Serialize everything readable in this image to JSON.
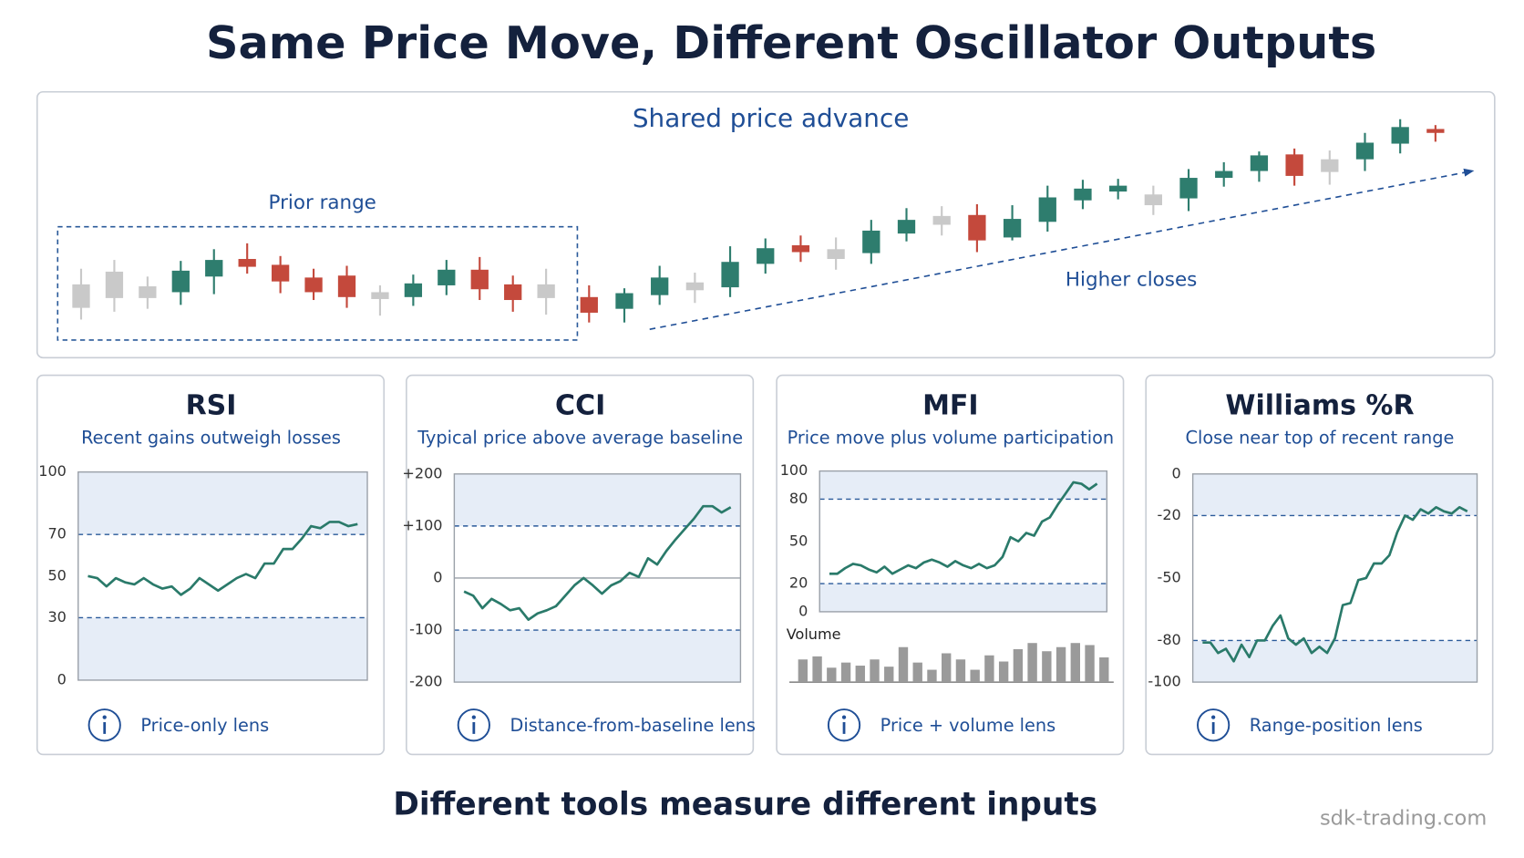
{
  "title": "Same Price Move, Different Oscillator Outputs",
  "footer": "Different tools measure different inputs",
  "watermark": "sdk-trading.com",
  "chart_data": [
    {
      "type": "candlestick",
      "title": "Shared price advance",
      "annotations": [
        "Prior range",
        "Higher closes"
      ],
      "open": [
        59,
        72,
        57,
        51,
        67,
        85,
        79,
        66,
        68,
        51,
        46,
        58,
        74,
        59,
        59,
        46,
        34,
        48,
        61,
        56,
        80,
        99,
        95,
        91,
        111,
        129,
        130,
        107,
        123,
        145,
        154,
        151,
        147,
        168,
        175,
        192,
        187,
        187,
        203,
        218
      ],
      "high": [
        75,
        84,
        67,
        83,
        95,
        101,
        88,
        75,
        78,
        58,
        69,
        84,
        87,
        68,
        75,
        58,
        55,
        78,
        71,
        98,
        106,
        109,
        107,
        125,
        137,
        139,
        141,
        140,
        160,
        166,
        167,
        160,
        177,
        184,
        195,
        198,
        196,
        214,
        228,
        222
      ],
      "low": [
        23,
        31,
        34,
        38,
        49,
        70,
        50,
        43,
        35,
        27,
        37,
        48,
        43,
        31,
        28,
        20,
        20,
        38,
        40,
        46,
        70,
        82,
        74,
        80,
        103,
        109,
        92,
        104,
        113,
        136,
        146,
        130,
        134,
        159,
        164,
        160,
        161,
        175,
        193,
        205
      ],
      "close": [
        35,
        45,
        45,
        73,
        84,
        77,
        62,
        51,
        46,
        44,
        60,
        74,
        54,
        43,
        45,
        30,
        50,
        66,
        53,
        82,
        96,
        92,
        85,
        114,
        125,
        120,
        104,
        126,
        148,
        157,
        160,
        140,
        168,
        175,
        191,
        170,
        174,
        204,
        220,
        214
      ],
      "colors": [
        "#c9c9c9",
        "#c9c9c9",
        "#c9c9c9",
        "#2e7d6e",
        "#2e7d6e",
        "#c4493c",
        "#c4493c",
        "#c4493c",
        "#c4493c",
        "#c9c9c9",
        "#2e7d6e",
        "#2e7d6e",
        "#c4493c",
        "#c4493c",
        "#c9c9c9",
        "#c4493c",
        "#2e7d6e",
        "#2e7d6e",
        "#c9c9c9",
        "#2e7d6e",
        "#2e7d6e",
        "#c4493c",
        "#c9c9c9",
        "#2e7d6e",
        "#2e7d6e",
        "#c9c9c9",
        "#c4493c",
        "#2e7d6e",
        "#2e7d6e",
        "#2e7d6e",
        "#2e7d6e",
        "#c9c9c9",
        "#2e7d6e",
        "#2e7d6e",
        "#2e7d6e",
        "#c4493c",
        "#c9c9c9",
        "#2e7d6e",
        "#2e7d6e",
        "#c4493c"
      ]
    },
    {
      "type": "line",
      "title": "RSI",
      "subtitle": "Recent gains outweigh losses",
      "note": "Price-only lens",
      "color": "#2a7a6a",
      "ylim": [
        0,
        100
      ],
      "yticks": [
        0,
        30,
        50,
        70,
        100
      ],
      "levels": [
        30,
        70
      ],
      "values": [
        50,
        49,
        45,
        49,
        47,
        46,
        49,
        46,
        44,
        45,
        41,
        44,
        49,
        46,
        43,
        46,
        49,
        51,
        49,
        56,
        56,
        63,
        63,
        68,
        74,
        73,
        76,
        76,
        74,
        75
      ]
    },
    {
      "type": "line",
      "title": "CCI",
      "subtitle": "Typical price above average baseline",
      "note": "Distance-from-baseline lens",
      "color": "#2a7a6a",
      "ylim": [
        -200,
        200
      ],
      "yticks": [
        {
          "value": -200,
          "label": "-200"
        },
        -100,
        0,
        {
          "value": 100,
          "label": "+100"
        },
        {
          "value": 200,
          "label": "+200"
        }
      ],
      "levels": [
        -100,
        100
      ],
      "zero_line": true,
      "values": [
        -26,
        -34,
        -58,
        -40,
        -50,
        -62,
        -58,
        -80,
        -68,
        -62,
        -54,
        -34,
        -14,
        0,
        -14,
        -30,
        -14,
        -6,
        10,
        2,
        38,
        26,
        52,
        74,
        94,
        114,
        138,
        138,
        126,
        136
      ]
    },
    {
      "type": "line",
      "title": "MFI",
      "subtitle": "Price move plus volume participation",
      "note": "Price + volume lens",
      "color": "#2a7a6a",
      "ylim": [
        0,
        100
      ],
      "yticks": [
        0,
        20,
        50,
        80,
        100
      ],
      "levels": [
        20,
        80
      ],
      "values": [
        27,
        27,
        31,
        34,
        33,
        30,
        28,
        32,
        27,
        30,
        33,
        31,
        35,
        37,
        35,
        32,
        36,
        33,
        31,
        34,
        31,
        33,
        39,
        53,
        50,
        56,
        54,
        64,
        67,
        76,
        84,
        92,
        91,
        87,
        91
      ],
      "volume": {
        "label": "Volume",
        "color": "#9a9a9a",
        "values": [
          22,
          25,
          14,
          19,
          16,
          22,
          15,
          34,
          19,
          12,
          28,
          22,
          12,
          26,
          20,
          32,
          38,
          30,
          34,
          38,
          36,
          24
        ]
      }
    },
    {
      "type": "line",
      "title": "Williams %R",
      "subtitle": "Close near top of recent range",
      "note": "Range-position lens",
      "color": "#2a7a6a",
      "ylim": [
        -100,
        0
      ],
      "yticks": [
        -100,
        -80,
        -50,
        -20,
        0
      ],
      "levels": [
        -80,
        -20
      ],
      "values": [
        -81,
        -81,
        -86,
        -84,
        -90,
        -82,
        -88,
        -80,
        -80,
        -73,
        -68,
        -79,
        -82,
        -79,
        -86,
        -83,
        -86,
        -79,
        -63,
        -62,
        -51,
        -50,
        -43,
        -43,
        -39,
        -28,
        -20,
        -22,
        -17,
        -19,
        -16,
        -18,
        -19,
        -16,
        -18
      ]
    }
  ]
}
